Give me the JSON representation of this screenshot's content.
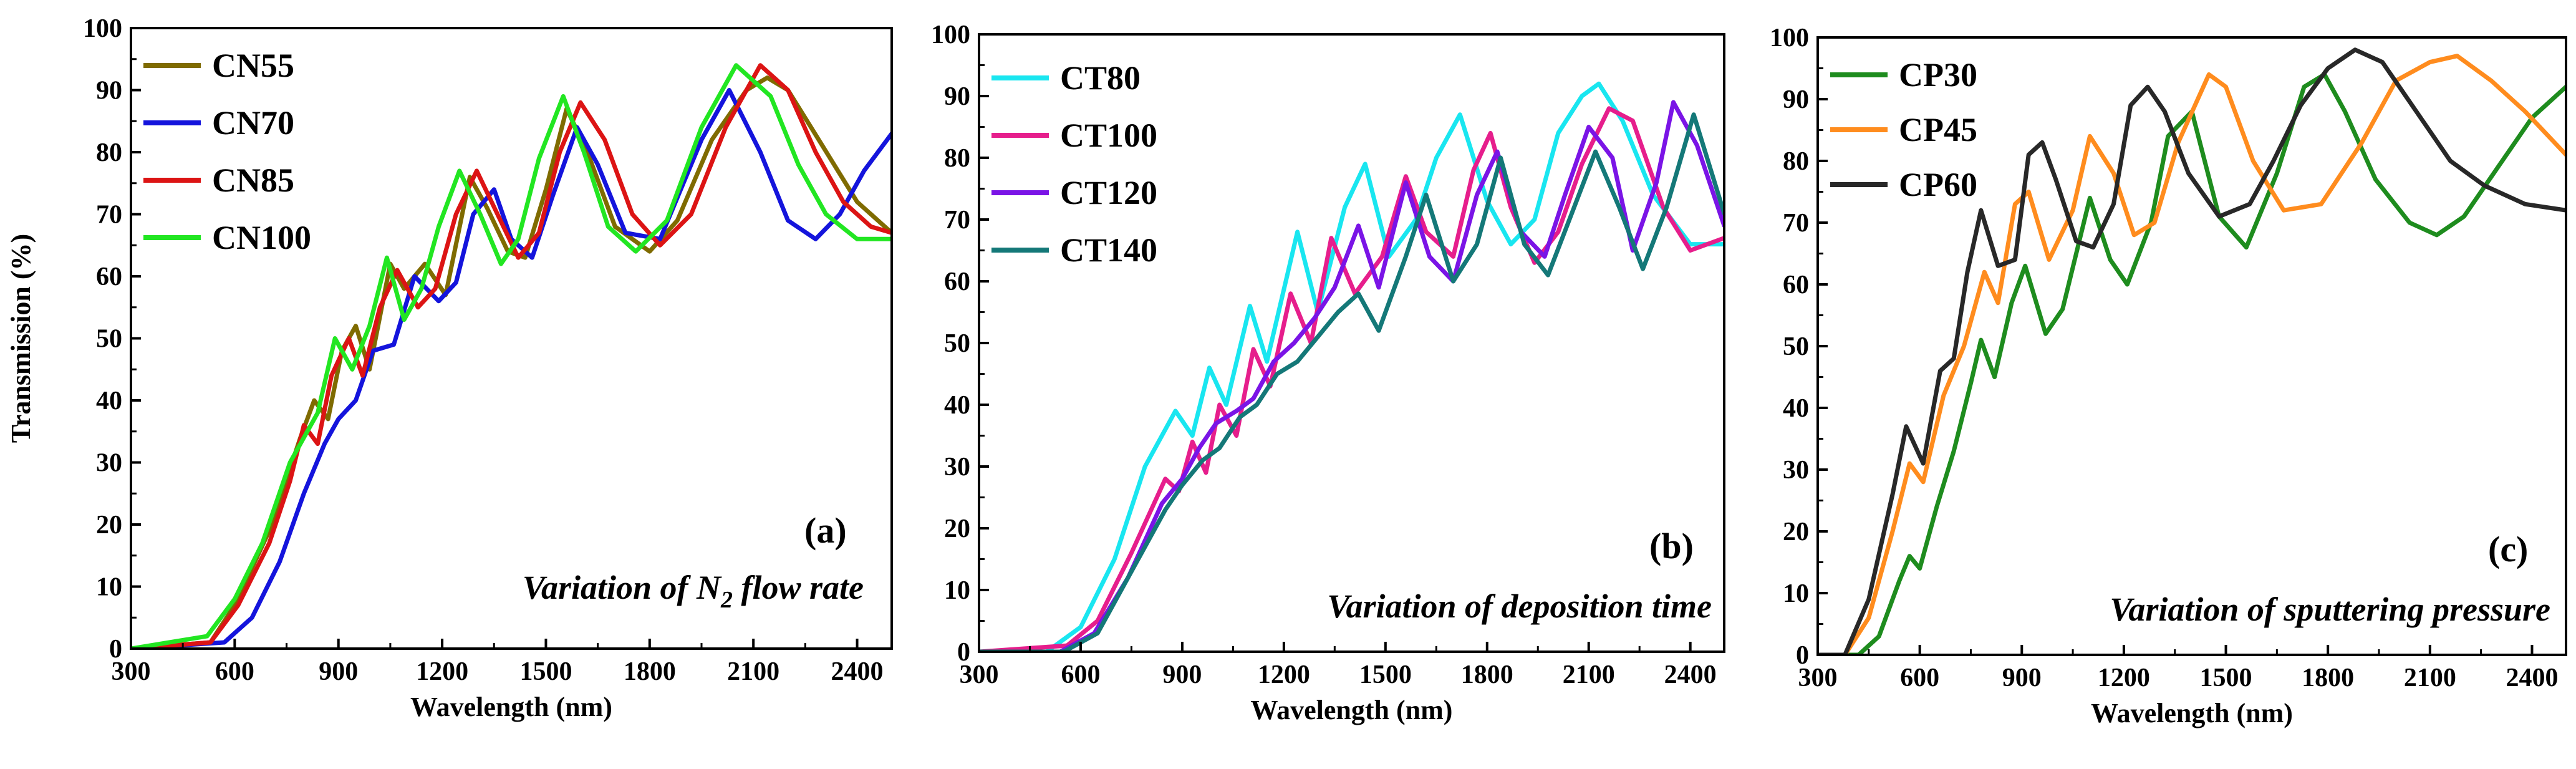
{
  "chart_data": [
    {
      "type": "line",
      "panel_label": "(a)",
      "annotation": {
        "pre": "Variation of N",
        "sub": "2",
        "post": " flow rate"
      },
      "xlabel": "Wavelength (nm)",
      "ylabel": "Transmission (%)",
      "xlim": [
        300,
        2500
      ],
      "ylim": [
        0,
        100
      ],
      "xticks": [
        300,
        600,
        900,
        1200,
        1500,
        1800,
        2100,
        2400
      ],
      "yticks": [
        0,
        10,
        20,
        30,
        40,
        50,
        60,
        70,
        80,
        90,
        100
      ],
      "legend_position": "top-left",
      "series": [
        {
          "name": "CN55",
          "color": "#7f6b00",
          "x": [
            300,
            530,
            600,
            700,
            790,
            830,
            870,
            910,
            950,
            990,
            1050,
            1090,
            1150,
            1210,
            1280,
            1330,
            1390,
            1440,
            1500,
            1560,
            1620,
            1700,
            1800,
            1880,
            1980,
            2080,
            2140,
            2200,
            2300,
            2400,
            2500
          ],
          "y": [
            0,
            1,
            7,
            19,
            34,
            40,
            37,
            48,
            52,
            45,
            62,
            58,
            62,
            57,
            76,
            71,
            64,
            63,
            74,
            87,
            80,
            68,
            64,
            69,
            82,
            90,
            92,
            90,
            81,
            72,
            67
          ]
        },
        {
          "name": "CN70",
          "color": "#1414dc",
          "x": [
            300,
            570,
            650,
            730,
            800,
            860,
            900,
            950,
            1000,
            1060,
            1120,
            1190,
            1240,
            1290,
            1350,
            1400,
            1460,
            1520,
            1590,
            1650,
            1730,
            1830,
            1950,
            2030,
            2120,
            2200,
            2280,
            2350,
            2420,
            2500
          ],
          "y": [
            0,
            1,
            5,
            14,
            25,
            33,
            37,
            40,
            48,
            49,
            60,
            56,
            59,
            70,
            74,
            66,
            63,
            73,
            84,
            78,
            67,
            66,
            82,
            90,
            80,
            69,
            66,
            70,
            77,
            83
          ]
        },
        {
          "name": "CN85",
          "color": "#dc1414",
          "x": [
            300,
            530,
            610,
            700,
            760,
            800,
            840,
            880,
            930,
            970,
            1020,
            1070,
            1130,
            1180,
            1240,
            1300,
            1360,
            1420,
            1480,
            1540,
            1600,
            1670,
            1750,
            1830,
            1920,
            2020,
            2120,
            2200,
            2280,
            2360,
            2440,
            2500
          ],
          "y": [
            0,
            1,
            7,
            17,
            27,
            36,
            33,
            44,
            50,
            44,
            55,
            61,
            55,
            58,
            70,
            77,
            70,
            63,
            67,
            80,
            88,
            82,
            70,
            65,
            70,
            84,
            94,
            90,
            80,
            72,
            68,
            67
          ]
        },
        {
          "name": "CN100",
          "color": "#22e622",
          "x": [
            300,
            520,
            600,
            680,
            760,
            800,
            840,
            890,
            940,
            990,
            1040,
            1090,
            1140,
            1190,
            1250,
            1310,
            1370,
            1420,
            1480,
            1550,
            1610,
            1680,
            1760,
            1850,
            1950,
            2050,
            2150,
            2230,
            2310,
            2400,
            2500
          ],
          "y": [
            0,
            2,
            8,
            17,
            30,
            34,
            38,
            50,
            45,
            52,
            63,
            53,
            58,
            68,
            77,
            70,
            62,
            66,
            79,
            89,
            80,
            68,
            64,
            69,
            84,
            94,
            89,
            78,
            70,
            66,
            66
          ]
        }
      ]
    },
    {
      "type": "line",
      "panel_label": "(b)",
      "annotation": {
        "pre": "Variation of deposition time",
        "sub": "",
        "post": ""
      },
      "xlabel": "Wavelength (nm)",
      "ylabel": "",
      "xlim": [
        300,
        2500
      ],
      "ylim": [
        0,
        100
      ],
      "xticks": [
        300,
        600,
        900,
        1200,
        1500,
        1800,
        2100,
        2400
      ],
      "yticks": [
        0,
        10,
        20,
        30,
        40,
        50,
        60,
        70,
        80,
        90,
        100
      ],
      "legend_position": "top-left",
      "series": [
        {
          "name": "CT80",
          "color": "#19e6f0",
          "x": [
            300,
            500,
            600,
            700,
            790,
            830,
            880,
            930,
            980,
            1030,
            1100,
            1150,
            1240,
            1300,
            1380,
            1440,
            1510,
            1590,
            1650,
            1720,
            1800,
            1870,
            1940,
            2010,
            2080,
            2130,
            2200,
            2290,
            2400,
            2500
          ],
          "y": [
            0,
            0,
            4,
            15,
            30,
            34,
            39,
            35,
            46,
            40,
            56,
            47,
            68,
            55,
            72,
            79,
            64,
            70,
            80,
            87,
            73,
            66,
            70,
            84,
            90,
            92,
            86,
            74,
            66,
            66
          ]
        },
        {
          "name": "CT100",
          "color": "#e61e8c",
          "x": [
            300,
            560,
            650,
            750,
            850,
            890,
            930,
            970,
            1010,
            1060,
            1110,
            1160,
            1220,
            1280,
            1340,
            1410,
            1490,
            1560,
            1620,
            1700,
            1760,
            1810,
            1870,
            1940,
            2010,
            2080,
            2160,
            2230,
            2320,
            2400,
            2500
          ],
          "y": [
            0,
            1,
            5,
            16,
            28,
            26,
            34,
            29,
            40,
            35,
            49,
            43,
            58,
            50,
            67,
            58,
            64,
            77,
            68,
            64,
            78,
            84,
            72,
            63,
            68,
            79,
            88,
            86,
            72,
            65,
            67
          ]
        },
        {
          "name": "CT120",
          "color": "#7a14e6",
          "x": [
            300,
            540,
            640,
            740,
            840,
            900,
            950,
            1000,
            1060,
            1110,
            1170,
            1230,
            1290,
            1350,
            1420,
            1480,
            1560,
            1630,
            1700,
            1770,
            1830,
            1900,
            1970,
            2030,
            2100,
            2170,
            2230,
            2300,
            2350,
            2420,
            2500
          ],
          "y": [
            0,
            0,
            3,
            12,
            24,
            28,
            33,
            37,
            39,
            41,
            47,
            50,
            54,
            59,
            69,
            59,
            76,
            64,
            60,
            74,
            81,
            68,
            64,
            74,
            85,
            80,
            65,
            76,
            89,
            82,
            69
          ]
        },
        {
          "name": "CT140",
          "color": "#147878",
          "x": [
            300,
            550,
            650,
            750,
            850,
            900,
            960,
            1010,
            1070,
            1120,
            1180,
            1240,
            1300,
            1360,
            1420,
            1480,
            1560,
            1620,
            1700,
            1770,
            1840,
            1910,
            1980,
            2050,
            2120,
            2190,
            2260,
            2330,
            2410,
            2500
          ],
          "y": [
            0,
            0,
            3,
            13,
            23,
            27,
            31,
            33,
            38,
            40,
            45,
            47,
            51,
            55,
            58,
            52,
            64,
            74,
            60,
            66,
            80,
            66,
            61,
            71,
            81,
            72,
            62,
            72,
            87,
            71
          ]
        }
      ]
    },
    {
      "type": "line",
      "panel_label": "(c)",
      "annotation": {
        "pre": "Variation of sputtering pressure",
        "sub": "",
        "post": ""
      },
      "xlabel": "Wavelength (nm)",
      "ylabel": "",
      "xlim": [
        300,
        2500
      ],
      "ylim": [
        0,
        100
      ],
      "xticks": [
        300,
        600,
        900,
        1200,
        1500,
        1800,
        2100,
        2400
      ],
      "yticks": [
        0,
        10,
        20,
        30,
        40,
        50,
        60,
        70,
        80,
        90,
        100
      ],
      "legend_position": "top-left",
      "series": [
        {
          "name": "CP30",
          "color": "#1e8c1e",
          "x": [
            300,
            420,
            480,
            540,
            570,
            600,
            650,
            700,
            750,
            780,
            820,
            870,
            910,
            970,
            1020,
            1100,
            1160,
            1210,
            1280,
            1330,
            1400,
            1480,
            1560,
            1650,
            1730,
            1790,
            1850,
            1940,
            2040,
            2120,
            2200,
            2300,
            2400,
            2500
          ],
          "y": [
            0,
            0,
            3,
            12,
            16,
            14,
            24,
            33,
            44,
            51,
            45,
            57,
            63,
            52,
            56,
            74,
            64,
            60,
            70,
            84,
            88,
            71,
            66,
            78,
            92,
            94,
            88,
            77,
            70,
            68,
            71,
            79,
            87,
            92
          ]
        },
        {
          "name": "CP45",
          "color": "#ff8c1e",
          "x": [
            300,
            380,
            450,
            520,
            570,
            610,
            670,
            730,
            790,
            830,
            880,
            920,
            980,
            1050,
            1100,
            1170,
            1230,
            1290,
            1360,
            1450,
            1500,
            1580,
            1670,
            1780,
            1900,
            2000,
            2100,
            2180,
            2280,
            2380,
            2500
          ],
          "y": [
            0,
            0,
            6,
            20,
            31,
            28,
            42,
            50,
            62,
            57,
            73,
            75,
            64,
            72,
            84,
            78,
            68,
            70,
            83,
            94,
            92,
            80,
            72,
            73,
            83,
            93,
            96,
            97,
            93,
            88,
            81
          ]
        },
        {
          "name": "CP60",
          "color": "#282828",
          "x": [
            300,
            380,
            450,
            520,
            560,
            610,
            660,
            700,
            740,
            780,
            830,
            880,
            920,
            960,
            1000,
            1060,
            1110,
            1170,
            1220,
            1270,
            1320,
            1390,
            1480,
            1570,
            1640,
            1720,
            1800,
            1880,
            1960,
            2060,
            2160,
            2260,
            2380,
            2500
          ],
          "y": [
            0,
            0,
            9,
            26,
            37,
            31,
            46,
            48,
            62,
            72,
            63,
            64,
            81,
            83,
            77,
            67,
            66,
            73,
            89,
            92,
            88,
            78,
            71,
            73,
            80,
            89,
            95,
            98,
            96,
            88,
            80,
            76,
            73,
            72
          ]
        }
      ]
    }
  ]
}
